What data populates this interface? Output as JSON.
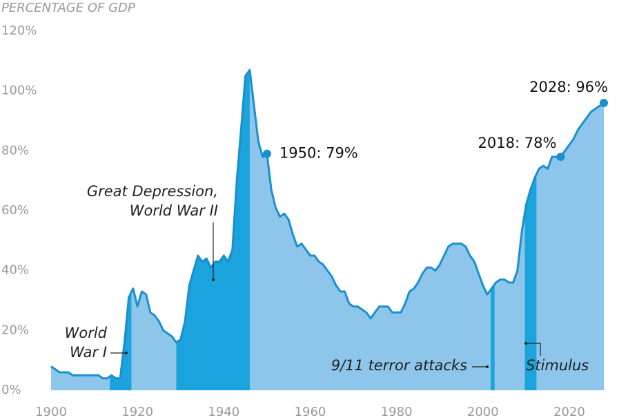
{
  "chart_data": {
    "type": "area",
    "y_axis_title": "PERCENTAGE OF GDP",
    "x": [
      1900,
      1901,
      1902,
      1903,
      1904,
      1905,
      1906,
      1907,
      1908,
      1909,
      1910,
      1911,
      1912,
      1913,
      1914,
      1915,
      1916,
      1917,
      1918,
      1919,
      1920,
      1921,
      1922,
      1923,
      1924,
      1925,
      1926,
      1927,
      1928,
      1929,
      1930,
      1931,
      1932,
      1933,
      1934,
      1935,
      1936,
      1937,
      1938,
      1939,
      1940,
      1941,
      1942,
      1943,
      1944,
      1945,
      1946,
      1947,
      1948,
      1949,
      1950,
      1951,
      1952,
      1953,
      1954,
      1955,
      1956,
      1957,
      1958,
      1959,
      1960,
      1961,
      1962,
      1963,
      1964,
      1965,
      1966,
      1967,
      1968,
      1969,
      1970,
      1971,
      1972,
      1973,
      1974,
      1975,
      1976,
      1977,
      1978,
      1979,
      1980,
      1981,
      1982,
      1983,
      1984,
      1985,
      1986,
      1987,
      1988,
      1989,
      1990,
      1991,
      1992,
      1993,
      1994,
      1995,
      1996,
      1997,
      1998,
      1999,
      2000,
      2001,
      2002,
      2003,
      2004,
      2005,
      2006,
      2007,
      2008,
      2009,
      2010,
      2011,
      2012,
      2013,
      2014,
      2015,
      2016,
      2017,
      2018,
      2019,
      2020,
      2021,
      2022,
      2023,
      2024,
      2025,
      2026,
      2027,
      2028
    ],
    "values": [
      8,
      7,
      6,
      6,
      6,
      5,
      5,
      5,
      5,
      5,
      5,
      5,
      4,
      4,
      5,
      4,
      4,
      16,
      31,
      34,
      28,
      33,
      32,
      26,
      25,
      23,
      20,
      19,
      18,
      16,
      17,
      23,
      35,
      40,
      45,
      43,
      44,
      41,
      43,
      43,
      45,
      43,
      47,
      70,
      87,
      105,
      107,
      95,
      83,
      78,
      79,
      67,
      61,
      58,
      59,
      57,
      52,
      48,
      49,
      47,
      45,
      45,
      43,
      42,
      40,
      38,
      35,
      33,
      33,
      29,
      28,
      28,
      27,
      26,
      24,
      26,
      28,
      28,
      28,
      26,
      26,
      26,
      29,
      33,
      34,
      36,
      39,
      41,
      41,
      40,
      42,
      45,
      48,
      49,
      49,
      49,
      48,
      45,
      43,
      39,
      35,
      32,
      34,
      36,
      37,
      37,
      36,
      36,
      40,
      53,
      62,
      67,
      71,
      74,
      75,
      74,
      78,
      78,
      78,
      80,
      82,
      84,
      87,
      89,
      91,
      93,
      94,
      95,
      96
    ],
    "color": "#8ec5ea",
    "line_color": "#1a8fd0",
    "highlight_color": "#1aa3dc",
    "xlim": [
      1900,
      2028
    ],
    "xticks": [
      1900,
      1920,
      1940,
      1960,
      1980,
      2000,
      2020
    ],
    "ylim": [
      0,
      120
    ],
    "yticks": [
      {
        "value": 0,
        "label": "0%"
      },
      {
        "value": 20,
        "label": "20%"
      },
      {
        "value": 40,
        "label": "40%"
      },
      {
        "value": 60,
        "label": "60%"
      },
      {
        "value": 80,
        "label": "80%"
      },
      {
        "value": 100,
        "label": "100%"
      },
      {
        "value": 120,
        "label": "120%"
      }
    ],
    "grid": false,
    "highlights": [
      {
        "label_lines": [
          "World",
          "War I"
        ],
        "start": 1913.6,
        "end": 1918.6
      },
      {
        "label_lines": [
          "Great Depression,",
          "World War II"
        ],
        "start": 1929,
        "end": 1946
      },
      {
        "label_lines": [
          "9/11 terror attacks"
        ],
        "start": 2001.8,
        "end": 2002.7
      },
      {
        "label_lines": [
          "Stimulus"
        ],
        "start": 2009.7,
        "end": 2012.4
      }
    ],
    "point_labels": [
      {
        "x": 1950,
        "label": "1950: 79%"
      },
      {
        "x": 2018,
        "label": "2018: 78%"
      },
      {
        "x": 2028,
        "label": "2028: 96%"
      }
    ]
  }
}
